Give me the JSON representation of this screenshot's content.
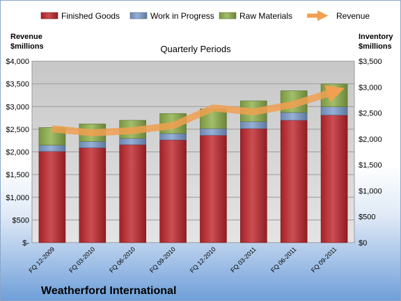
{
  "chart_data": {
    "type": "bar",
    "stacked": true,
    "title": "Quarterly Periods",
    "company": "Weatherford International",
    "categories": [
      "FQ 12-2009",
      "FQ 03-2010",
      "FQ 06-2010",
      "FQ 09-2010",
      "FQ 12-2010",
      "FQ 03-2011",
      "FQ 06-2011",
      "FQ 09-2011"
    ],
    "series": [
      {
        "name": "Finished Goods",
        "color": "#c0272d",
        "values": [
          1760,
          1830,
          1890,
          1980,
          2070,
          2200,
          2360,
          2460
        ]
      },
      {
        "name": "Work in Progress",
        "color": "#7f9fd0",
        "values": [
          120,
          120,
          120,
          125,
          130,
          135,
          150,
          160
        ]
      },
      {
        "name": "Raw Materials",
        "color": "#8fb04a",
        "values": [
          340,
          340,
          350,
          385,
          380,
          400,
          420,
          440
        ]
      }
    ],
    "line_series": {
      "name": "Revenue",
      "color": "#f0a050",
      "values": [
        2510,
        2420,
        2470,
        2580,
        2970,
        2880,
        3050,
        3330
      ]
    },
    "left_axis": {
      "title_lines": [
        "Revenue",
        "$millions"
      ],
      "ylim": [
        0,
        4000
      ],
      "ticks": [
        "$-",
        "$500",
        "$1,000",
        "$1,500",
        "$2,000",
        "$2,500",
        "$3,000",
        "$3,500",
        "$4,000"
      ]
    },
    "right_axis": {
      "title_lines": [
        "Inventory",
        "$millions"
      ],
      "ylim": [
        0,
        3500
      ],
      "ticks": [
        "$0",
        "$500",
        "$1,000",
        "$1,500",
        "$2,000",
        "$2,500",
        "$3,000",
        "$3,500"
      ]
    },
    "legend_placement": "top",
    "grid": true
  }
}
